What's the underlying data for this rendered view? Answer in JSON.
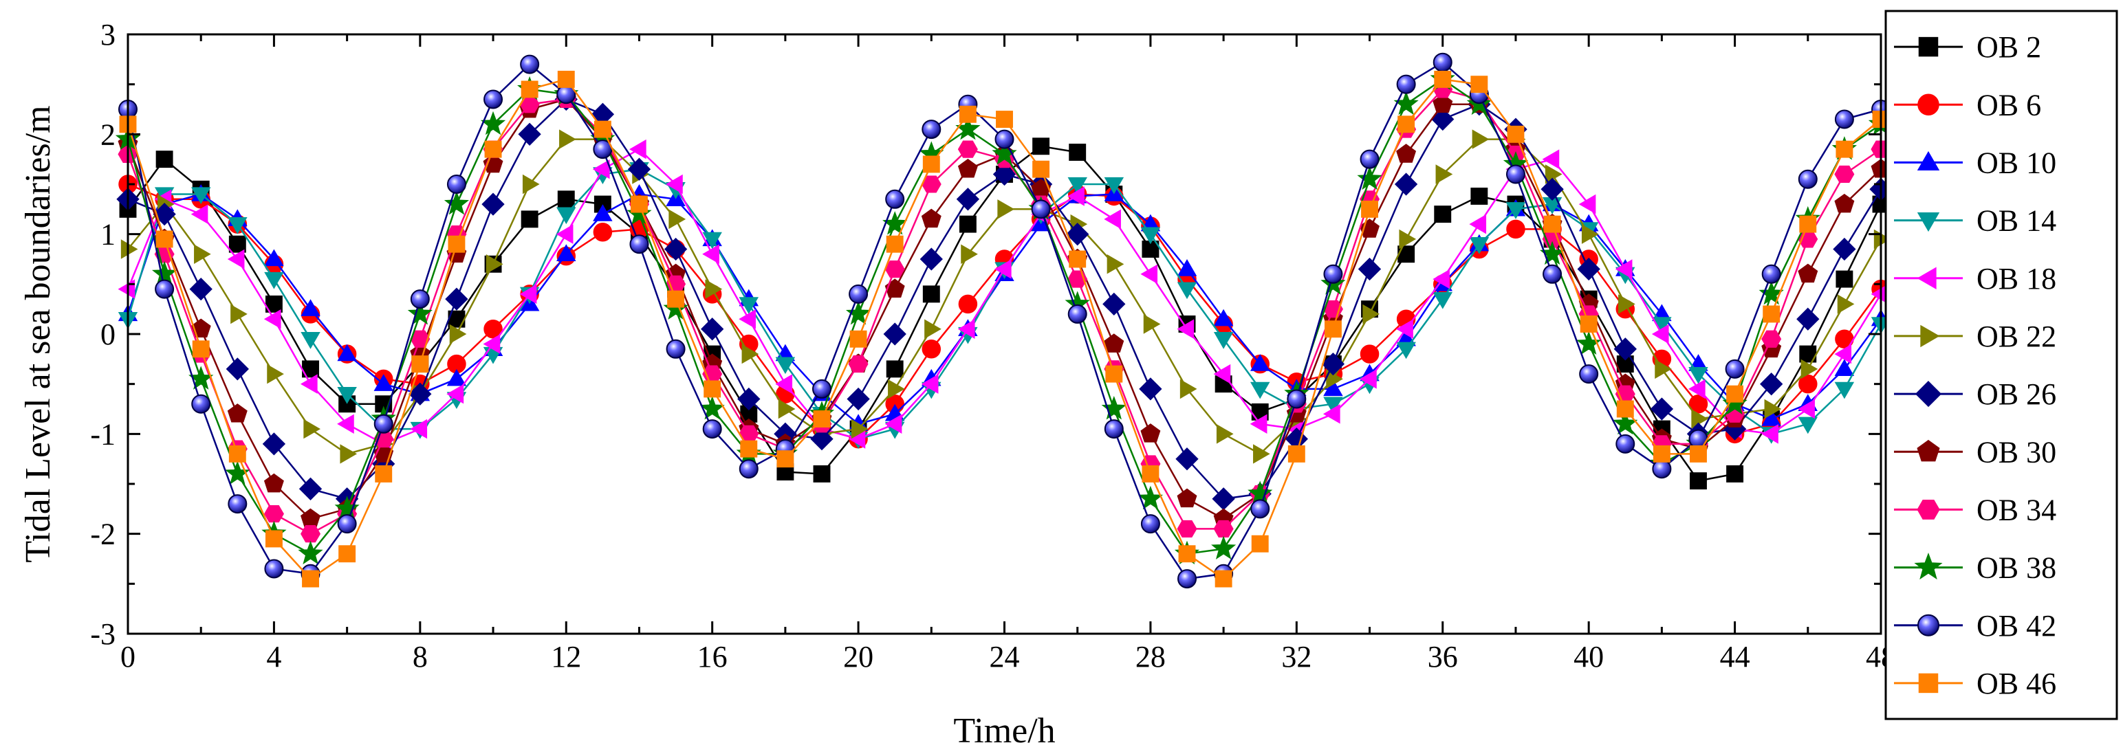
{
  "chart_data": {
    "type": "line",
    "title": "",
    "xlabel": "Time/h",
    "ylabel": "Tidal Level at sea boundaries/m",
    "xlim": [
      0,
      48
    ],
    "ylim": [
      -3,
      3
    ],
    "x_ticks": [
      "0",
      "4",
      "8",
      "12",
      "16",
      "20",
      "24",
      "28",
      "32",
      "36",
      "40",
      "44",
      "48"
    ],
    "y_ticks": [
      "-3",
      "-2",
      "-1",
      "0",
      "1",
      "2",
      "3"
    ],
    "grid": false,
    "legend_position": "right",
    "x": [
      0,
      1,
      2,
      3,
      4,
      5,
      6,
      7,
      8,
      9,
      10,
      11,
      12,
      13,
      14,
      15,
      16,
      17,
      18,
      19,
      20,
      21,
      22,
      23,
      24,
      25,
      26,
      27,
      28,
      29,
      30,
      31,
      32,
      33,
      34,
      35,
      36,
      37,
      38,
      39,
      40,
      41,
      42,
      43,
      44,
      45,
      46,
      47,
      48
    ],
    "series": [
      {
        "name": "OB 2",
        "color": "#000000",
        "marker": "square",
        "values": [
          1.25,
          1.75,
          1.45,
          0.9,
          0.3,
          -0.35,
          -0.7,
          -0.7,
          -0.3,
          0.15,
          0.7,
          1.15,
          1.35,
          1.3,
          1.0,
          0.45,
          -0.2,
          -0.8,
          -1.38,
          -1.4,
          -0.95,
          -0.35,
          0.4,
          1.1,
          1.6,
          1.88,
          1.82,
          1.4,
          0.85,
          0.1,
          -0.5,
          -0.78,
          -0.65,
          -0.3,
          0.25,
          0.8,
          1.2,
          1.38,
          1.3,
          0.95,
          0.35,
          -0.3,
          -0.95,
          -1.47,
          -1.4,
          -0.85,
          -0.2,
          0.55,
          1.3
        ]
      },
      {
        "name": "OB 6",
        "color": "#ff0000",
        "marker": "circle",
        "values": [
          1.5,
          1.35,
          1.35,
          1.1,
          0.7,
          0.2,
          -0.2,
          -0.45,
          -0.5,
          -0.3,
          0.05,
          0.4,
          0.78,
          1.02,
          1.05,
          0.85,
          0.4,
          -0.1,
          -0.6,
          -0.95,
          -1.05,
          -0.7,
          -0.15,
          0.3,
          0.75,
          1.15,
          1.4,
          1.38,
          1.08,
          0.55,
          0.1,
          -0.3,
          -0.48,
          -0.4,
          -0.2,
          0.15,
          0.5,
          0.85,
          1.05,
          1.05,
          0.75,
          0.25,
          -0.25,
          -0.7,
          -1.0,
          -0.9,
          -0.5,
          -0.05,
          0.45
        ]
      },
      {
        "name": "OB 10",
        "color": "#0000ff",
        "marker": "triangle-up",
        "values": [
          0.2,
          1.3,
          1.4,
          1.15,
          0.75,
          0.25,
          -0.2,
          -0.5,
          -0.6,
          -0.45,
          -0.15,
          0.3,
          0.8,
          1.2,
          1.4,
          1.35,
          0.95,
          0.35,
          -0.2,
          -0.6,
          -0.9,
          -0.8,
          -0.45,
          0.05,
          0.6,
          1.1,
          1.38,
          1.4,
          1.1,
          0.65,
          0.15,
          -0.3,
          -0.55,
          -0.55,
          -0.4,
          -0.05,
          0.5,
          0.9,
          1.25,
          1.3,
          1.1,
          0.65,
          0.2,
          -0.3,
          -0.7,
          -0.85,
          -0.7,
          -0.35,
          0.15
        ]
      },
      {
        "name": "OB 14",
        "color": "#009999",
        "marker": "triangle-down",
        "values": [
          0.15,
          1.4,
          1.4,
          1.1,
          0.55,
          -0.05,
          -0.6,
          -0.95,
          -0.95,
          -0.65,
          -0.2,
          0.4,
          1.2,
          1.6,
          1.65,
          1.45,
          0.95,
          0.3,
          -0.3,
          -0.8,
          -1.05,
          -0.95,
          -0.55,
          0.0,
          0.65,
          1.2,
          1.5,
          1.5,
          1.0,
          0.45,
          -0.05,
          -0.55,
          -0.75,
          -0.7,
          -0.5,
          -0.15,
          0.35,
          0.9,
          1.25,
          1.3,
          1.05,
          0.6,
          0.1,
          -0.4,
          -0.75,
          -1.0,
          -0.9,
          -0.55,
          0.1
        ]
      },
      {
        "name": "OB 18",
        "color": "#ff00ff",
        "marker": "triangle-left",
        "values": [
          0.45,
          1.35,
          1.2,
          0.75,
          0.15,
          -0.5,
          -0.9,
          -1.1,
          -0.95,
          -0.6,
          -0.1,
          0.4,
          1.0,
          1.65,
          1.85,
          1.5,
          0.8,
          0.15,
          -0.5,
          -0.95,
          -1.05,
          -0.9,
          -0.5,
          0.05,
          0.65,
          1.2,
          1.38,
          1.15,
          0.6,
          0.05,
          -0.4,
          -0.9,
          -0.95,
          -0.8,
          -0.45,
          0.05,
          0.55,
          1.1,
          1.65,
          1.75,
          1.3,
          0.65,
          0.0,
          -0.55,
          -0.95,
          -1.0,
          -0.75,
          -0.2,
          0.4
        ]
      },
      {
        "name": "OB 22",
        "color": "#808000",
        "marker": "triangle-right",
        "values": [
          0.85,
          1.3,
          0.8,
          0.2,
          -0.4,
          -0.95,
          -1.2,
          -1.1,
          -0.6,
          0.0,
          0.7,
          1.5,
          1.95,
          1.95,
          1.6,
          1.15,
          0.45,
          -0.2,
          -0.75,
          -1.0,
          -0.95,
          -0.55,
          0.05,
          0.8,
          1.25,
          1.25,
          1.1,
          0.7,
          0.1,
          -0.55,
          -1.0,
          -1.2,
          -0.85,
          -0.45,
          0.2,
          0.95,
          1.6,
          1.95,
          1.95,
          1.6,
          1.0,
          0.3,
          -0.35,
          -0.85,
          -0.8,
          -0.75,
          -0.35,
          0.3,
          0.95
        ]
      },
      {
        "name": "OB 26",
        "color": "#000080",
        "marker": "diamond",
        "values": [
          1.35,
          1.2,
          0.45,
          -0.35,
          -1.1,
          -1.55,
          -1.65,
          -1.3,
          -0.6,
          0.35,
          1.3,
          2.0,
          2.35,
          2.2,
          1.65,
          0.85,
          0.05,
          -0.65,
          -1.0,
          -1.05,
          -0.65,
          0.0,
          0.75,
          1.35,
          1.6,
          1.5,
          1.0,
          0.3,
          -0.55,
          -1.25,
          -1.65,
          -1.6,
          -1.05,
          -0.3,
          0.65,
          1.5,
          2.15,
          2.3,
          2.05,
          1.45,
          0.65,
          -0.15,
          -0.75,
          -1.0,
          -0.95,
          -0.5,
          0.15,
          0.85,
          1.45
        ]
      },
      {
        "name": "OB 30",
        "color": "#800000",
        "marker": "pentagon",
        "values": [
          1.9,
          0.95,
          0.05,
          -0.8,
          -1.5,
          -1.85,
          -1.75,
          -1.2,
          -0.2,
          0.8,
          1.7,
          2.25,
          2.35,
          1.95,
          1.3,
          0.6,
          -0.3,
          -0.95,
          -1.1,
          -0.85,
          -0.3,
          0.45,
          1.15,
          1.65,
          1.8,
          1.45,
          0.75,
          -0.1,
          -1.0,
          -1.65,
          -1.85,
          -1.6,
          -0.8,
          0.15,
          1.05,
          1.8,
          2.3,
          2.3,
          1.85,
          1.1,
          0.3,
          -0.5,
          -1.05,
          -1.15,
          -0.85,
          -0.15,
          0.6,
          1.3,
          1.65
        ]
      },
      {
        "name": "OB 34",
        "color": "#ff0080",
        "marker": "hexagon",
        "values": [
          1.8,
          0.8,
          -0.2,
          -1.15,
          -1.8,
          -2.0,
          -1.8,
          -1.05,
          -0.05,
          1.0,
          1.85,
          2.3,
          2.35,
          2.0,
          1.3,
          0.5,
          -0.4,
          -1.0,
          -1.15,
          -0.9,
          -0.3,
          0.65,
          1.5,
          1.85,
          1.75,
          1.3,
          0.55,
          -0.35,
          -1.3,
          -1.95,
          -1.95,
          -1.6,
          -0.7,
          0.25,
          1.35,
          2.05,
          2.45,
          2.35,
          1.8,
          0.95,
          0.2,
          -0.6,
          -1.1,
          -1.1,
          -0.8,
          -0.05,
          0.95,
          1.6,
          1.85
        ]
      },
      {
        "name": "OB 38",
        "color": "#008000",
        "marker": "star",
        "values": [
          1.95,
          0.6,
          -0.45,
          -1.4,
          -2.0,
          -2.2,
          -1.75,
          -0.85,
          0.2,
          1.3,
          2.1,
          2.45,
          2.4,
          1.95,
          1.2,
          0.25,
          -0.75,
          -1.2,
          -1.2,
          -0.8,
          0.2,
          1.1,
          1.8,
          2.05,
          1.8,
          1.25,
          0.3,
          -0.75,
          -1.65,
          -2.2,
          -2.15,
          -1.6,
          -0.6,
          0.5,
          1.55,
          2.3,
          2.55,
          2.3,
          1.7,
          0.8,
          -0.1,
          -0.9,
          -1.3,
          -1.1,
          -0.7,
          0.4,
          1.15,
          1.85,
          2.1
        ]
      },
      {
        "name": "OB 42",
        "color": "#000080",
        "marker": "sphere",
        "values": [
          2.25,
          0.45,
          -0.7,
          -1.7,
          -2.35,
          -2.4,
          -1.9,
          -0.9,
          0.35,
          1.5,
          2.35,
          2.7,
          2.4,
          1.85,
          0.9,
          -0.15,
          -0.95,
          -1.35,
          -1.15,
          -0.55,
          0.4,
          1.35,
          2.05,
          2.3,
          1.95,
          1.25,
          0.2,
          -0.95,
          -1.9,
          -2.45,
          -2.4,
          -1.75,
          -0.65,
          0.6,
          1.75,
          2.5,
          2.72,
          2.4,
          1.6,
          0.6,
          -0.4,
          -1.1,
          -1.35,
          -1.05,
          -0.35,
          0.6,
          1.55,
          2.15,
          2.25
        ]
      },
      {
        "name": "OB 46",
        "color": "#ff8000",
        "marker": "square",
        "values": [
          2.1,
          0.95,
          -0.15,
          -1.2,
          -2.05,
          -2.45,
          -2.2,
          -1.4,
          -0.3,
          0.9,
          1.85,
          2.45,
          2.55,
          2.05,
          1.3,
          0.35,
          -0.55,
          -1.15,
          -1.25,
          -0.85,
          -0.05,
          0.9,
          1.7,
          2.2,
          2.15,
          1.65,
          0.75,
          -0.4,
          -1.4,
          -2.2,
          -2.45,
          -2.1,
          -1.2,
          0.05,
          1.25,
          2.1,
          2.55,
          2.5,
          2.0,
          1.1,
          0.1,
          -0.75,
          -1.2,
          -1.2,
          -0.6,
          0.2,
          1.1,
          1.85,
          2.15
        ]
      }
    ]
  }
}
